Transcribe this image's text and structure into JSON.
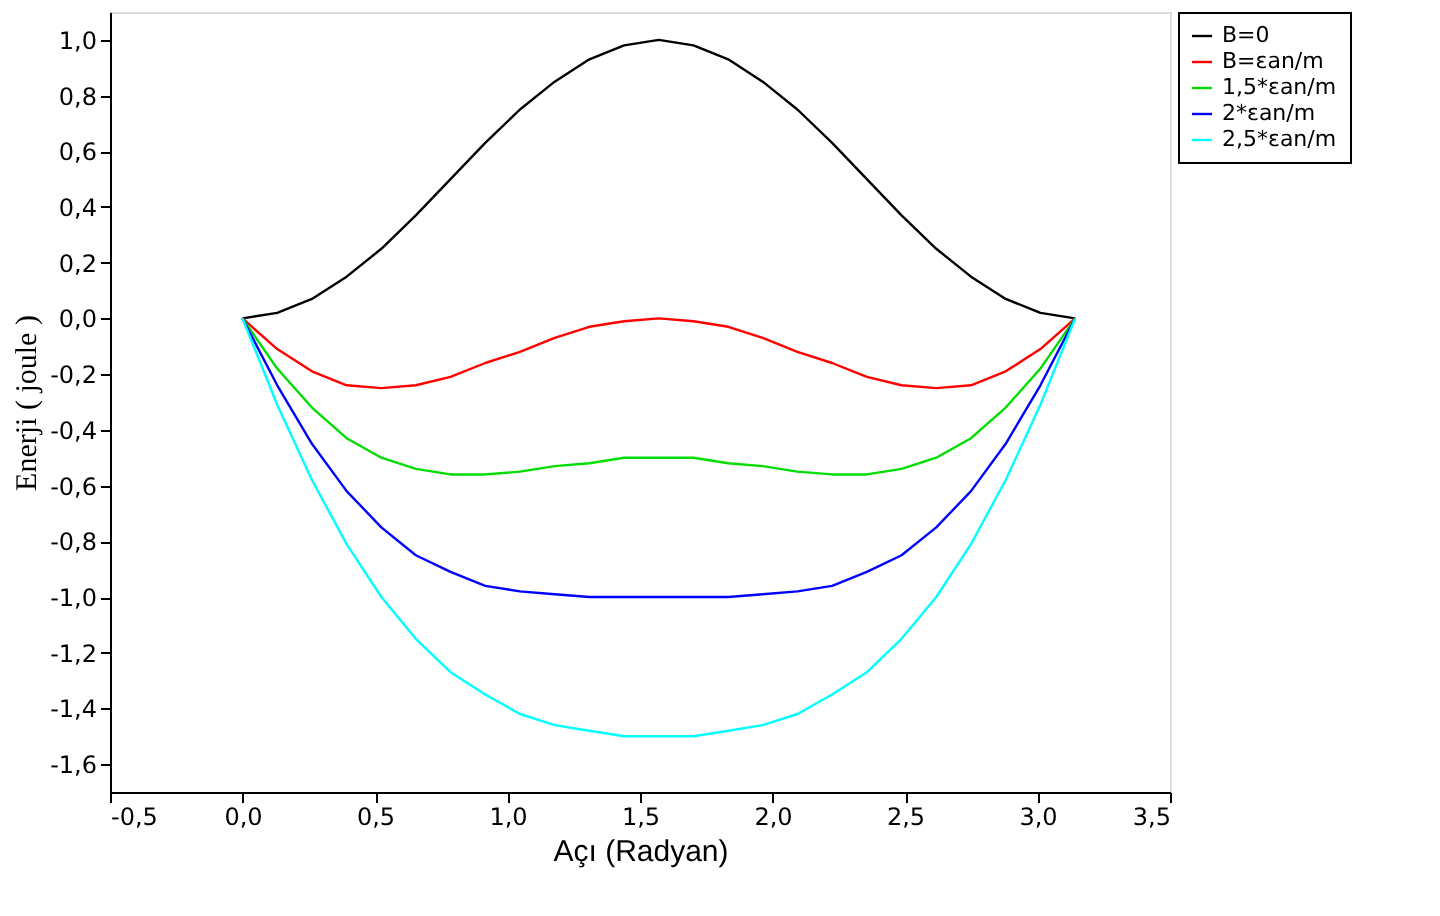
{
  "chart_data": {
    "type": "line",
    "xlabel": "Açı (Radyan)",
    "ylabel": "Enerji ( joule )",
    "x": [
      0,
      0.131,
      0.262,
      0.393,
      0.524,
      0.654,
      0.785,
      0.916,
      1.047,
      1.178,
      1.309,
      1.44,
      1.571,
      1.702,
      1.833,
      1.963,
      2.094,
      2.225,
      2.356,
      2.487,
      2.618,
      2.749,
      2.88,
      3.011,
      3.142
    ],
    "series": [
      {
        "name": "B=0",
        "color": "#000000",
        "values": [
          0,
          0.02,
          0.07,
          0.15,
          0.25,
          0.37,
          0.5,
          0.63,
          0.75,
          0.85,
          0.93,
          0.98,
          1,
          0.98,
          0.93,
          0.85,
          0.75,
          0.63,
          0.5,
          0.37,
          0.25,
          0.15,
          0.07,
          0.02,
          0
        ]
      },
      {
        "name": "B=εan/m",
        "color": "#ff0000",
        "values": [
          0,
          -0.11,
          -0.19,
          -0.24,
          -0.25,
          -0.24,
          -0.21,
          -0.16,
          -0.12,
          -0.07,
          -0.03,
          -0.01,
          0,
          -0.01,
          -0.03,
          -0.07,
          -0.12,
          -0.16,
          -0.21,
          -0.24,
          -0.25,
          -0.24,
          -0.19,
          -0.11,
          0
        ]
      },
      {
        "name": "1,5*εan/m",
        "color": "#00dd00",
        "values": [
          0,
          -0.18,
          -0.32,
          -0.43,
          -0.5,
          -0.54,
          -0.56,
          -0.56,
          -0.55,
          -0.53,
          -0.52,
          -0.5,
          -0.5,
          -0.5,
          -0.52,
          -0.53,
          -0.55,
          -0.56,
          -0.56,
          -0.54,
          -0.5,
          -0.43,
          -0.32,
          -0.18,
          0
        ]
      },
      {
        "name": "2*εan/m",
        "color": "#0000ff",
        "values": [
          0,
          -0.24,
          -0.45,
          -0.62,
          -0.75,
          -0.85,
          -0.91,
          -0.96,
          -0.98,
          -0.99,
          -1,
          -1,
          -1,
          -1,
          -1,
          -0.99,
          -0.98,
          -0.96,
          -0.91,
          -0.85,
          -0.75,
          -0.62,
          -0.45,
          -0.24,
          0
        ]
      },
      {
        "name": "2,5*εan/m",
        "color": "#00ffff",
        "values": [
          0,
          -0.31,
          -0.58,
          -0.81,
          -1,
          -1.15,
          -1.27,
          -1.35,
          -1.42,
          -1.46,
          -1.48,
          -1.5,
          -1.5,
          -1.5,
          -1.48,
          -1.46,
          -1.42,
          -1.35,
          -1.27,
          -1.15,
          -1,
          -0.81,
          -0.58,
          -0.31,
          0
        ]
      }
    ],
    "xlim": [
      -0.5,
      3.5
    ],
    "xticks": [
      {
        "value": -0.5,
        "label": "-0,5"
      },
      {
        "value": 0,
        "label": "0,0"
      },
      {
        "value": 0.5,
        "label": "0,5"
      },
      {
        "value": 1,
        "label": "1,0"
      },
      {
        "value": 1.5,
        "label": "1,5"
      },
      {
        "value": 2,
        "label": "2,0"
      },
      {
        "value": 2.5,
        "label": "2,5"
      },
      {
        "value": 3,
        "label": "3,0"
      },
      {
        "value": 3.5,
        "label": "3,5"
      }
    ],
    "ylim": [
      -1.7,
      1.1
    ],
    "yticks": [
      {
        "value": -1.6,
        "label": "-1,6"
      },
      {
        "value": -1.4,
        "label": "-1,4"
      },
      {
        "value": -1.2,
        "label": "-1,2"
      },
      {
        "value": -1,
        "label": "-1,0"
      },
      {
        "value": -0.8,
        "label": "-0,8"
      },
      {
        "value": -0.6,
        "label": "-0,6"
      },
      {
        "value": -0.4,
        "label": "-0,4"
      },
      {
        "value": -0.2,
        "label": "-0,2"
      },
      {
        "value": 0,
        "label": "0,0"
      },
      {
        "value": 0.2,
        "label": "0,2"
      },
      {
        "value": 0.4,
        "label": "0,4"
      },
      {
        "value": 0.6,
        "label": "0,6"
      },
      {
        "value": 0.8,
        "label": "0,8"
      },
      {
        "value": 1,
        "label": "1,0"
      }
    ],
    "grid": false,
    "legend": "top right",
    "marker": "none",
    "line_style": "solid"
  }
}
